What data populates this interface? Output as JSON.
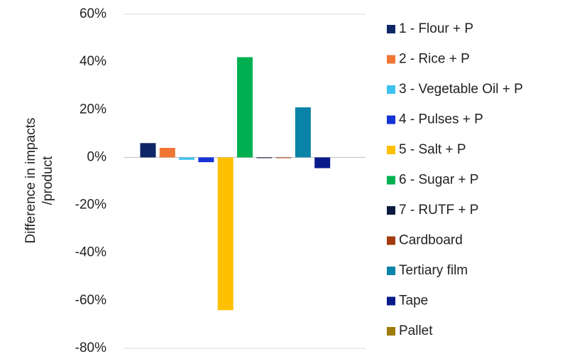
{
  "chart_data": {
    "type": "bar",
    "ylabel": [
      "Difference in impacts",
      "/product"
    ],
    "categories": [
      null
    ],
    "series": [
      {
        "name": "1 - Flour + P",
        "color": "#0e2566",
        "values": [
          6
        ]
      },
      {
        "name": "2 - Rice + P",
        "color": "#ef7634",
        "values": [
          4
        ]
      },
      {
        "name": "3 - Vegetable Oil + P",
        "color": "#3fc1ef",
        "values": [
          -1
        ]
      },
      {
        "name": "4 - Pulses + P",
        "color": "#1432d6",
        "values": [
          -2
        ]
      },
      {
        "name": "5 - Salt + P",
        "color": "#ffc000",
        "values": [
          -64
        ]
      },
      {
        "name": "6 - Sugar + P",
        "color": "#00b050",
        "values": [
          42
        ]
      },
      {
        "name": "7 - RUTF + P",
        "color": "#0d1a40",
        "values": [
          -0.3
        ]
      },
      {
        "name": "Cardboard",
        "color": "#a23c0f",
        "values": [
          -0.3
        ]
      },
      {
        "name": "Tertiary film",
        "color": "#0a83a8",
        "values": [
          21
        ]
      },
      {
        "name": "Tape",
        "color": "#0a1a8a",
        "values": [
          -4.5
        ]
      },
      {
        "name": "Pallet",
        "color": "#9e7b0a",
        "values": [
          0
        ]
      }
    ],
    "ylim": [
      -80,
      60
    ],
    "yticks": [
      {
        "value": -80,
        "label": "-80%"
      },
      {
        "value": -60,
        "label": "-60%"
      },
      {
        "value": -40,
        "label": "-40%"
      },
      {
        "value": -20,
        "label": "-20%"
      },
      {
        "value": 0,
        "label": "0%"
      },
      {
        "value": 20,
        "label": "20%"
      },
      {
        "value": 40,
        "label": "40%"
      },
      {
        "value": 60,
        "label": "60%"
      }
    ],
    "grid": false,
    "legend": "right"
  }
}
